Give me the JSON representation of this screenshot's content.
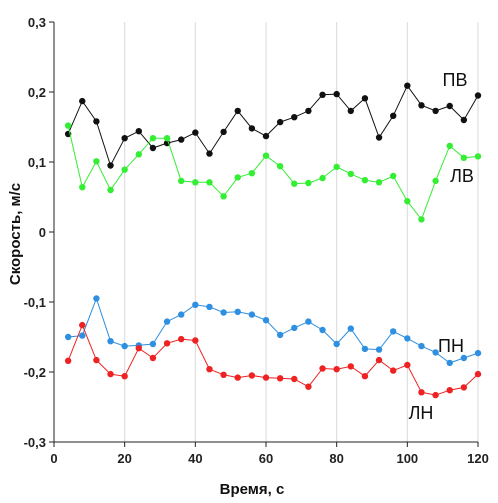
{
  "chart_data": {
    "type": "line",
    "title": "",
    "xlabel": "Время, с",
    "ylabel": "Скорость, м/с",
    "xlim": [
      0,
      120
    ],
    "ylim": [
      -0.3,
      0.3
    ],
    "x_ticks": [
      0,
      20,
      40,
      60,
      80,
      100,
      120
    ],
    "x_tick_labels": [
      "0",
      "20",
      "40",
      "60",
      "80",
      "100",
      "120"
    ],
    "y_ticks": [
      -0.3,
      -0.2,
      -0.1,
      0,
      0.1,
      0.2,
      0.3
    ],
    "y_tick_labels": [
      "-0,3",
      "-0,2",
      "-0,1",
      "0",
      "0,1",
      "0,2",
      "0,3"
    ],
    "grid": "vertical",
    "legend": "none",
    "x": [
      4,
      8,
      12,
      16,
      20,
      24,
      28,
      32,
      36,
      40,
      44,
      48,
      52,
      56,
      60,
      64,
      68,
      72,
      76,
      80,
      84,
      88,
      92,
      96,
      100,
      104,
      108,
      112,
      116,
      120
    ],
    "series": [
      {
        "name": "ПВ",
        "color": "#111111",
        "values": [
          0.14,
          0.187,
          0.158,
          0.095,
          0.134,
          0.144,
          0.12,
          0.127,
          0.132,
          0.142,
          0.112,
          0.143,
          0.173,
          0.148,
          0.137,
          0.157,
          0.164,
          0.173,
          0.196,
          0.197,
          0.173,
          0.191,
          0.135,
          0.166,
          0.209,
          0.181,
          0.173,
          0.18,
          0.16,
          0.195
        ]
      },
      {
        "name": "ЛВ",
        "color": "#33ee33",
        "values": [
          0.152,
          0.064,
          0.101,
          0.06,
          0.089,
          0.111,
          0.134,
          0.134,
          0.073,
          0.071,
          0.071,
          0.051,
          0.078,
          0.084,
          0.109,
          0.094,
          0.069,
          0.07,
          0.077,
          0.093,
          0.083,
          0.074,
          0.071,
          0.08,
          0.044,
          0.018,
          0.073,
          0.123,
          0.106,
          0.108
        ]
      },
      {
        "name": "ПН",
        "color": "#2f8fe0",
        "values": [
          -0.15,
          -0.148,
          -0.095,
          -0.156,
          -0.163,
          -0.162,
          -0.16,
          -0.128,
          -0.118,
          -0.104,
          -0.107,
          -0.115,
          -0.114,
          -0.118,
          -0.126,
          -0.147,
          -0.137,
          -0.128,
          -0.14,
          -0.16,
          -0.138,
          -0.167,
          -0.168,
          -0.142,
          -0.152,
          -0.163,
          -0.172,
          -0.187,
          -0.18,
          -0.173
        ]
      },
      {
        "name": "ЛН",
        "color": "#ee2222",
        "values": [
          -0.184,
          -0.133,
          -0.183,
          -0.203,
          -0.206,
          -0.166,
          -0.18,
          -0.159,
          -0.153,
          -0.155,
          -0.196,
          -0.204,
          -0.208,
          -0.205,
          -0.208,
          -0.209,
          -0.21,
          -0.221,
          -0.195,
          -0.196,
          -0.192,
          -0.206,
          -0.183,
          -0.198,
          -0.19,
          -0.229,
          -0.233,
          -0.226,
          -0.222,
          -0.203
        ]
      }
    ]
  }
}
